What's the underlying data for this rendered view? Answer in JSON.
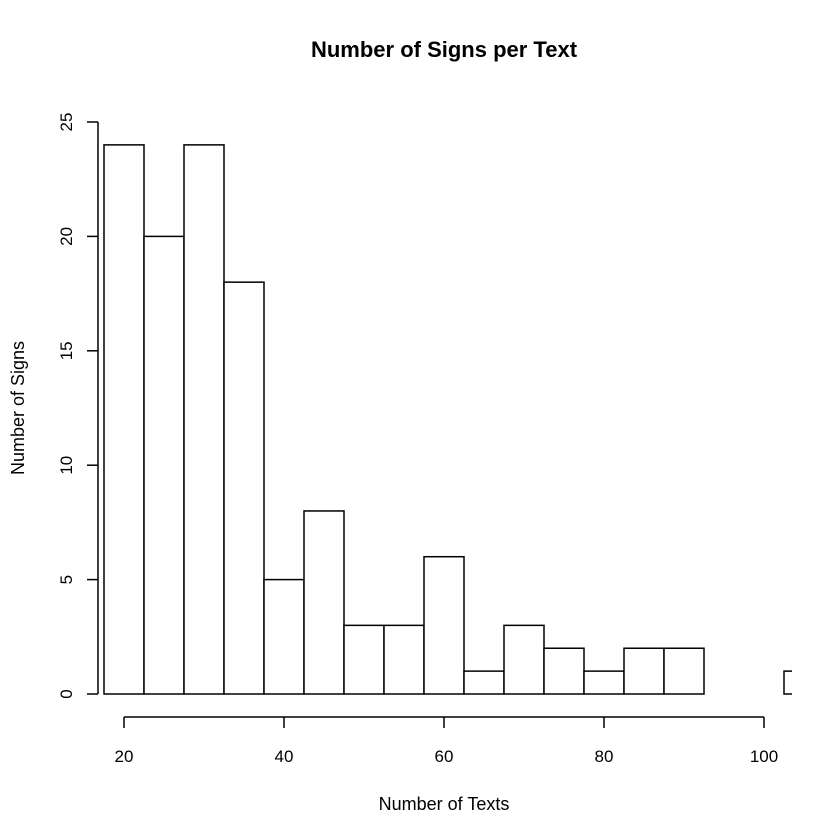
{
  "chart_data": {
    "type": "bar",
    "subtype": "histogram",
    "title": "Number of Signs per Text",
    "xlabel": "Number of Texts",
    "ylabel": "Number of Signs",
    "bin_width": 5,
    "bins": [
      {
        "start": 17.5,
        "end": 22.5,
        "count": 24
      },
      {
        "start": 22.5,
        "end": 27.5,
        "count": 20
      },
      {
        "start": 27.5,
        "end": 32.5,
        "count": 24
      },
      {
        "start": 32.5,
        "end": 37.5,
        "count": 18
      },
      {
        "start": 37.5,
        "end": 42.5,
        "count": 5
      },
      {
        "start": 42.5,
        "end": 47.5,
        "count": 8
      },
      {
        "start": 47.5,
        "end": 52.5,
        "count": 3
      },
      {
        "start": 52.5,
        "end": 57.5,
        "count": 3
      },
      {
        "start": 57.5,
        "end": 62.5,
        "count": 6
      },
      {
        "start": 62.5,
        "end": 67.5,
        "count": 1
      },
      {
        "start": 67.5,
        "end": 72.5,
        "count": 3
      },
      {
        "start": 72.5,
        "end": 77.5,
        "count": 2
      },
      {
        "start": 77.5,
        "end": 82.5,
        "count": 1
      },
      {
        "start": 82.5,
        "end": 87.5,
        "count": 2
      },
      {
        "start": 87.5,
        "end": 92.5,
        "count": 2
      },
      {
        "start": 92.5,
        "end": 97.5,
        "count": 0
      },
      {
        "start": 97.5,
        "end": 102.5,
        "count": 0
      },
      {
        "start": 102.5,
        "end": 107.5,
        "count": 1
      }
    ],
    "xlim": [
      17.5,
      103.5
    ],
    "ylim": [
      0,
      25
    ],
    "x_ticks": [
      20,
      40,
      60,
      80,
      100
    ],
    "y_ticks": [
      0,
      5,
      10,
      15,
      20,
      25
    ],
    "grid": false,
    "legend": "none"
  }
}
